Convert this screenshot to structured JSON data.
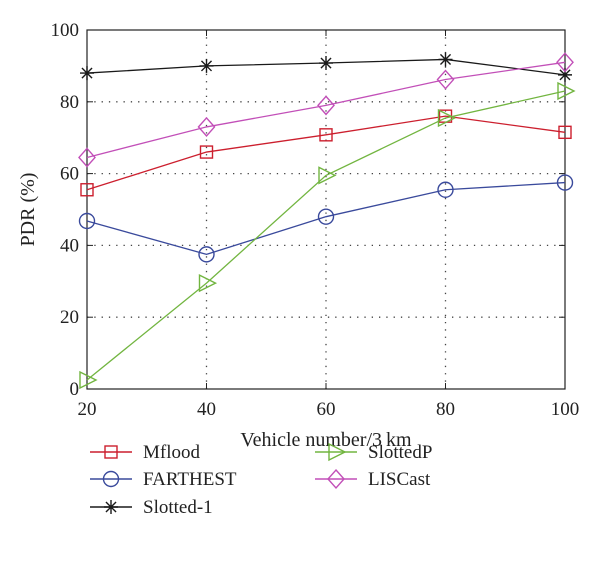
{
  "chart_data": {
    "type": "line",
    "title": "",
    "xlabel": "Vehicle number/3 km",
    "ylabel": "PDR (%)",
    "x": [
      20,
      40,
      60,
      80,
      100
    ],
    "xlim": [
      20,
      100
    ],
    "ylim": [
      0,
      100
    ],
    "xticks": [
      "20",
      "40",
      "60",
      "80",
      "100"
    ],
    "yticks": [
      "0",
      "20",
      "40",
      "60",
      "80",
      "100"
    ],
    "grid": true,
    "legend_position": "bottom",
    "series": [
      {
        "name": "Mflood",
        "values": [
          55.5,
          66,
          70.8,
          76,
          71.5
        ],
        "color": "#cc1f2e",
        "marker": "square"
      },
      {
        "name": "FARTHEST",
        "values": [
          46.8,
          37.5,
          48,
          55.5,
          57.5
        ],
        "color": "#3a4a9c",
        "marker": "circle"
      },
      {
        "name": "Slotted-1",
        "values": [
          88,
          90,
          90.8,
          91.8,
          87.5
        ],
        "color": "#1a1a1a",
        "marker": "star"
      },
      {
        "name": "SlottedP",
        "values": [
          2.5,
          29.5,
          59.5,
          75.5,
          83
        ],
        "color": "#72b540",
        "marker": "triangle-right"
      },
      {
        "name": "LISCast",
        "values": [
          64.5,
          73,
          79,
          86.2,
          91
        ],
        "color": "#c24fb8",
        "marker": "diamond"
      }
    ]
  }
}
